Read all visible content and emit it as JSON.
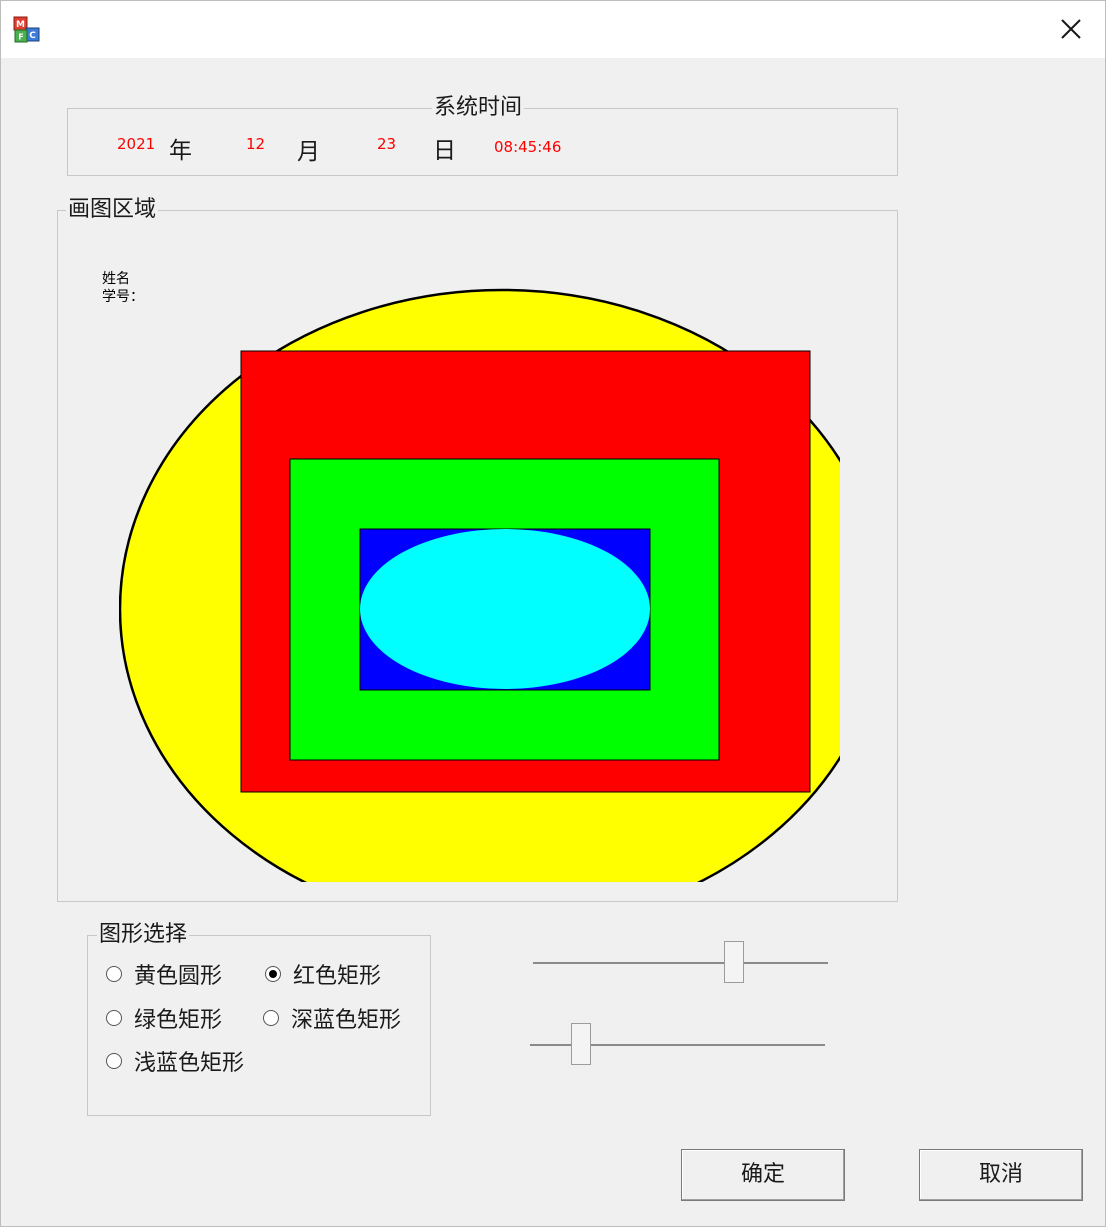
{
  "window": {
    "app_icon": "mfc-app-icon",
    "close_icon": "close-icon"
  },
  "time": {
    "legend": "系统时间",
    "year_value": "2021",
    "year_label": "年",
    "month_value": "12",
    "month_label": "月",
    "day_value": "23",
    "day_label": "日",
    "clock": "08:45:46",
    "value_color": "#ff0000"
  },
  "drawing": {
    "legend": "画图区域",
    "name_label": "姓名",
    "id_label": "学号：",
    "shapes": {
      "yellow_circle": "#ffff00",
      "red_rect": "#ff0000",
      "green_rect": "#00ff00",
      "dark_blue_rect": "#0000ff",
      "light_blue_ellipse": "#00ffff"
    }
  },
  "shape_select": {
    "legend": "图形选择",
    "options": [
      {
        "label": "黄色圆形",
        "checked": false
      },
      {
        "label": "红色矩形",
        "checked": true
      },
      {
        "label": "绿色矩形",
        "checked": false
      },
      {
        "label": "深蓝色矩形",
        "checked": false
      },
      {
        "label": "浅蓝色矩形",
        "checked": false
      }
    ]
  },
  "sliders": [
    {
      "value_fraction": 0.7
    },
    {
      "value_fraction": 0.15
    }
  ],
  "buttons": {
    "ok": "确定",
    "cancel": "取消"
  }
}
